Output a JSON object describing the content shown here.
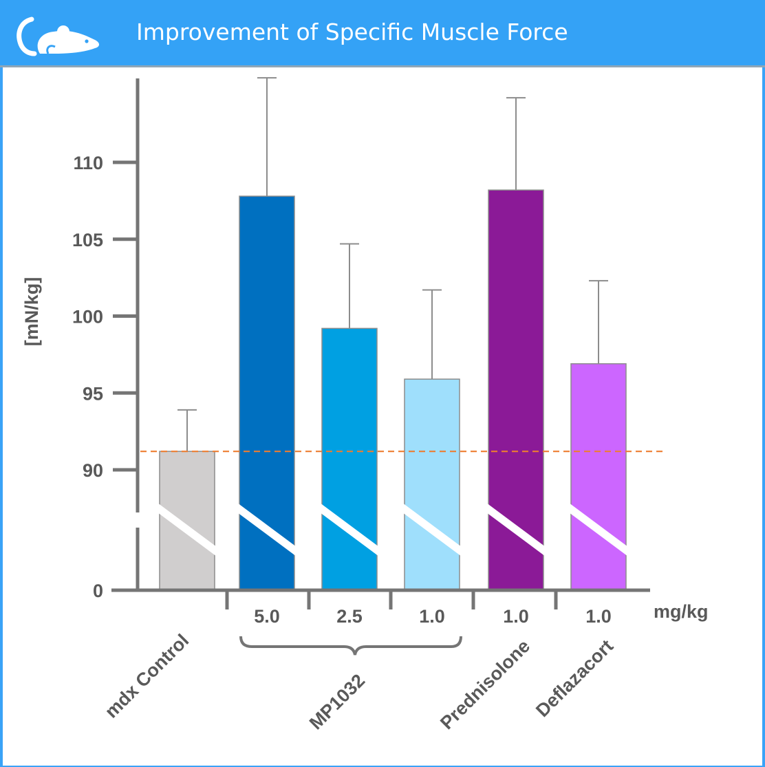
{
  "header": {
    "title": "Improvement of Specific Muscle Force",
    "icon": "mouse-icon",
    "background_color": "#34a2f6"
  },
  "chart_data": {
    "type": "bar",
    "title": "Improvement of Specific Muscle Force",
    "ylabel": "[mN/kg]",
    "dose_unit_label": "mg/kg",
    "y_axis_break": true,
    "ylim": [
      86,
      115
    ],
    "yticks": [
      {
        "value": 0,
        "label": "0"
      },
      {
        "value": 90,
        "label": "90"
      },
      {
        "value": 95,
        "label": "95"
      },
      {
        "value": 100,
        "label": "100"
      },
      {
        "value": 105,
        "label": "105"
      },
      {
        "value": 110,
        "label": "110"
      }
    ],
    "reference_line": {
      "value": 91.2,
      "style": "dashed",
      "color": "#ed7d31"
    },
    "bars": [
      {
        "category": "mdx Control",
        "dose": "",
        "value": 91.2,
        "error": 2.7,
        "color": "#d0cece"
      },
      {
        "category": "MP1032",
        "dose": "5.0",
        "value": 107.8,
        "error": 7.7,
        "color": "#0070c0"
      },
      {
        "category": "MP1032",
        "dose": "2.5",
        "value": 99.2,
        "error": 5.5,
        "color": "#00a0e2"
      },
      {
        "category": "MP1032",
        "dose": "1.0",
        "value": 95.9,
        "error": 5.8,
        "color": "#9fdffc"
      },
      {
        "category": "Prednisolone",
        "dose": "1.0",
        "value": 108.2,
        "error": 6.0,
        "color": "#8b1a97"
      },
      {
        "category": "Deflazacort",
        "dose": "1.0",
        "value": 96.9,
        "error": 5.4,
        "color": "#cc66ff"
      }
    ],
    "group_labels": [
      {
        "label": "mdx Control"
      },
      {
        "label": "MP1032"
      },
      {
        "label": "Prednisolone"
      },
      {
        "label": "Deflazacort"
      }
    ],
    "grid": false,
    "legend": "none"
  }
}
